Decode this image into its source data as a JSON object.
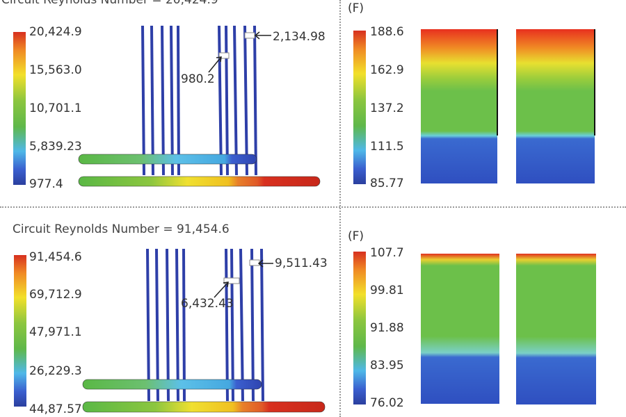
{
  "top": {
    "title": "Circuit Reynolds Number = 20,424.9",
    "colorbar": [
      "20,424.9",
      "15,563.0",
      "10,701.1",
      "5,839.23",
      "977.4"
    ],
    "callouts": [
      "2,134.98",
      "980.2"
    ],
    "temp_unit": "(F)",
    "temp_colorbar": [
      "188.6",
      "162.9",
      "137.2",
      "111.5",
      "85.77"
    ]
  },
  "bottom": {
    "title": "Circuit Reynolds Number = 91,454.6",
    "colorbar": [
      "91,454.6",
      "69,712.9",
      "47,971.1",
      "26,229.3",
      "44,87.57"
    ],
    "callouts": [
      "9,511.43",
      "6,432.43"
    ],
    "temp_unit": "(F)",
    "temp_colorbar": [
      "107.7",
      "99.81",
      "91.88",
      "83.95",
      "76.02"
    ]
  }
}
